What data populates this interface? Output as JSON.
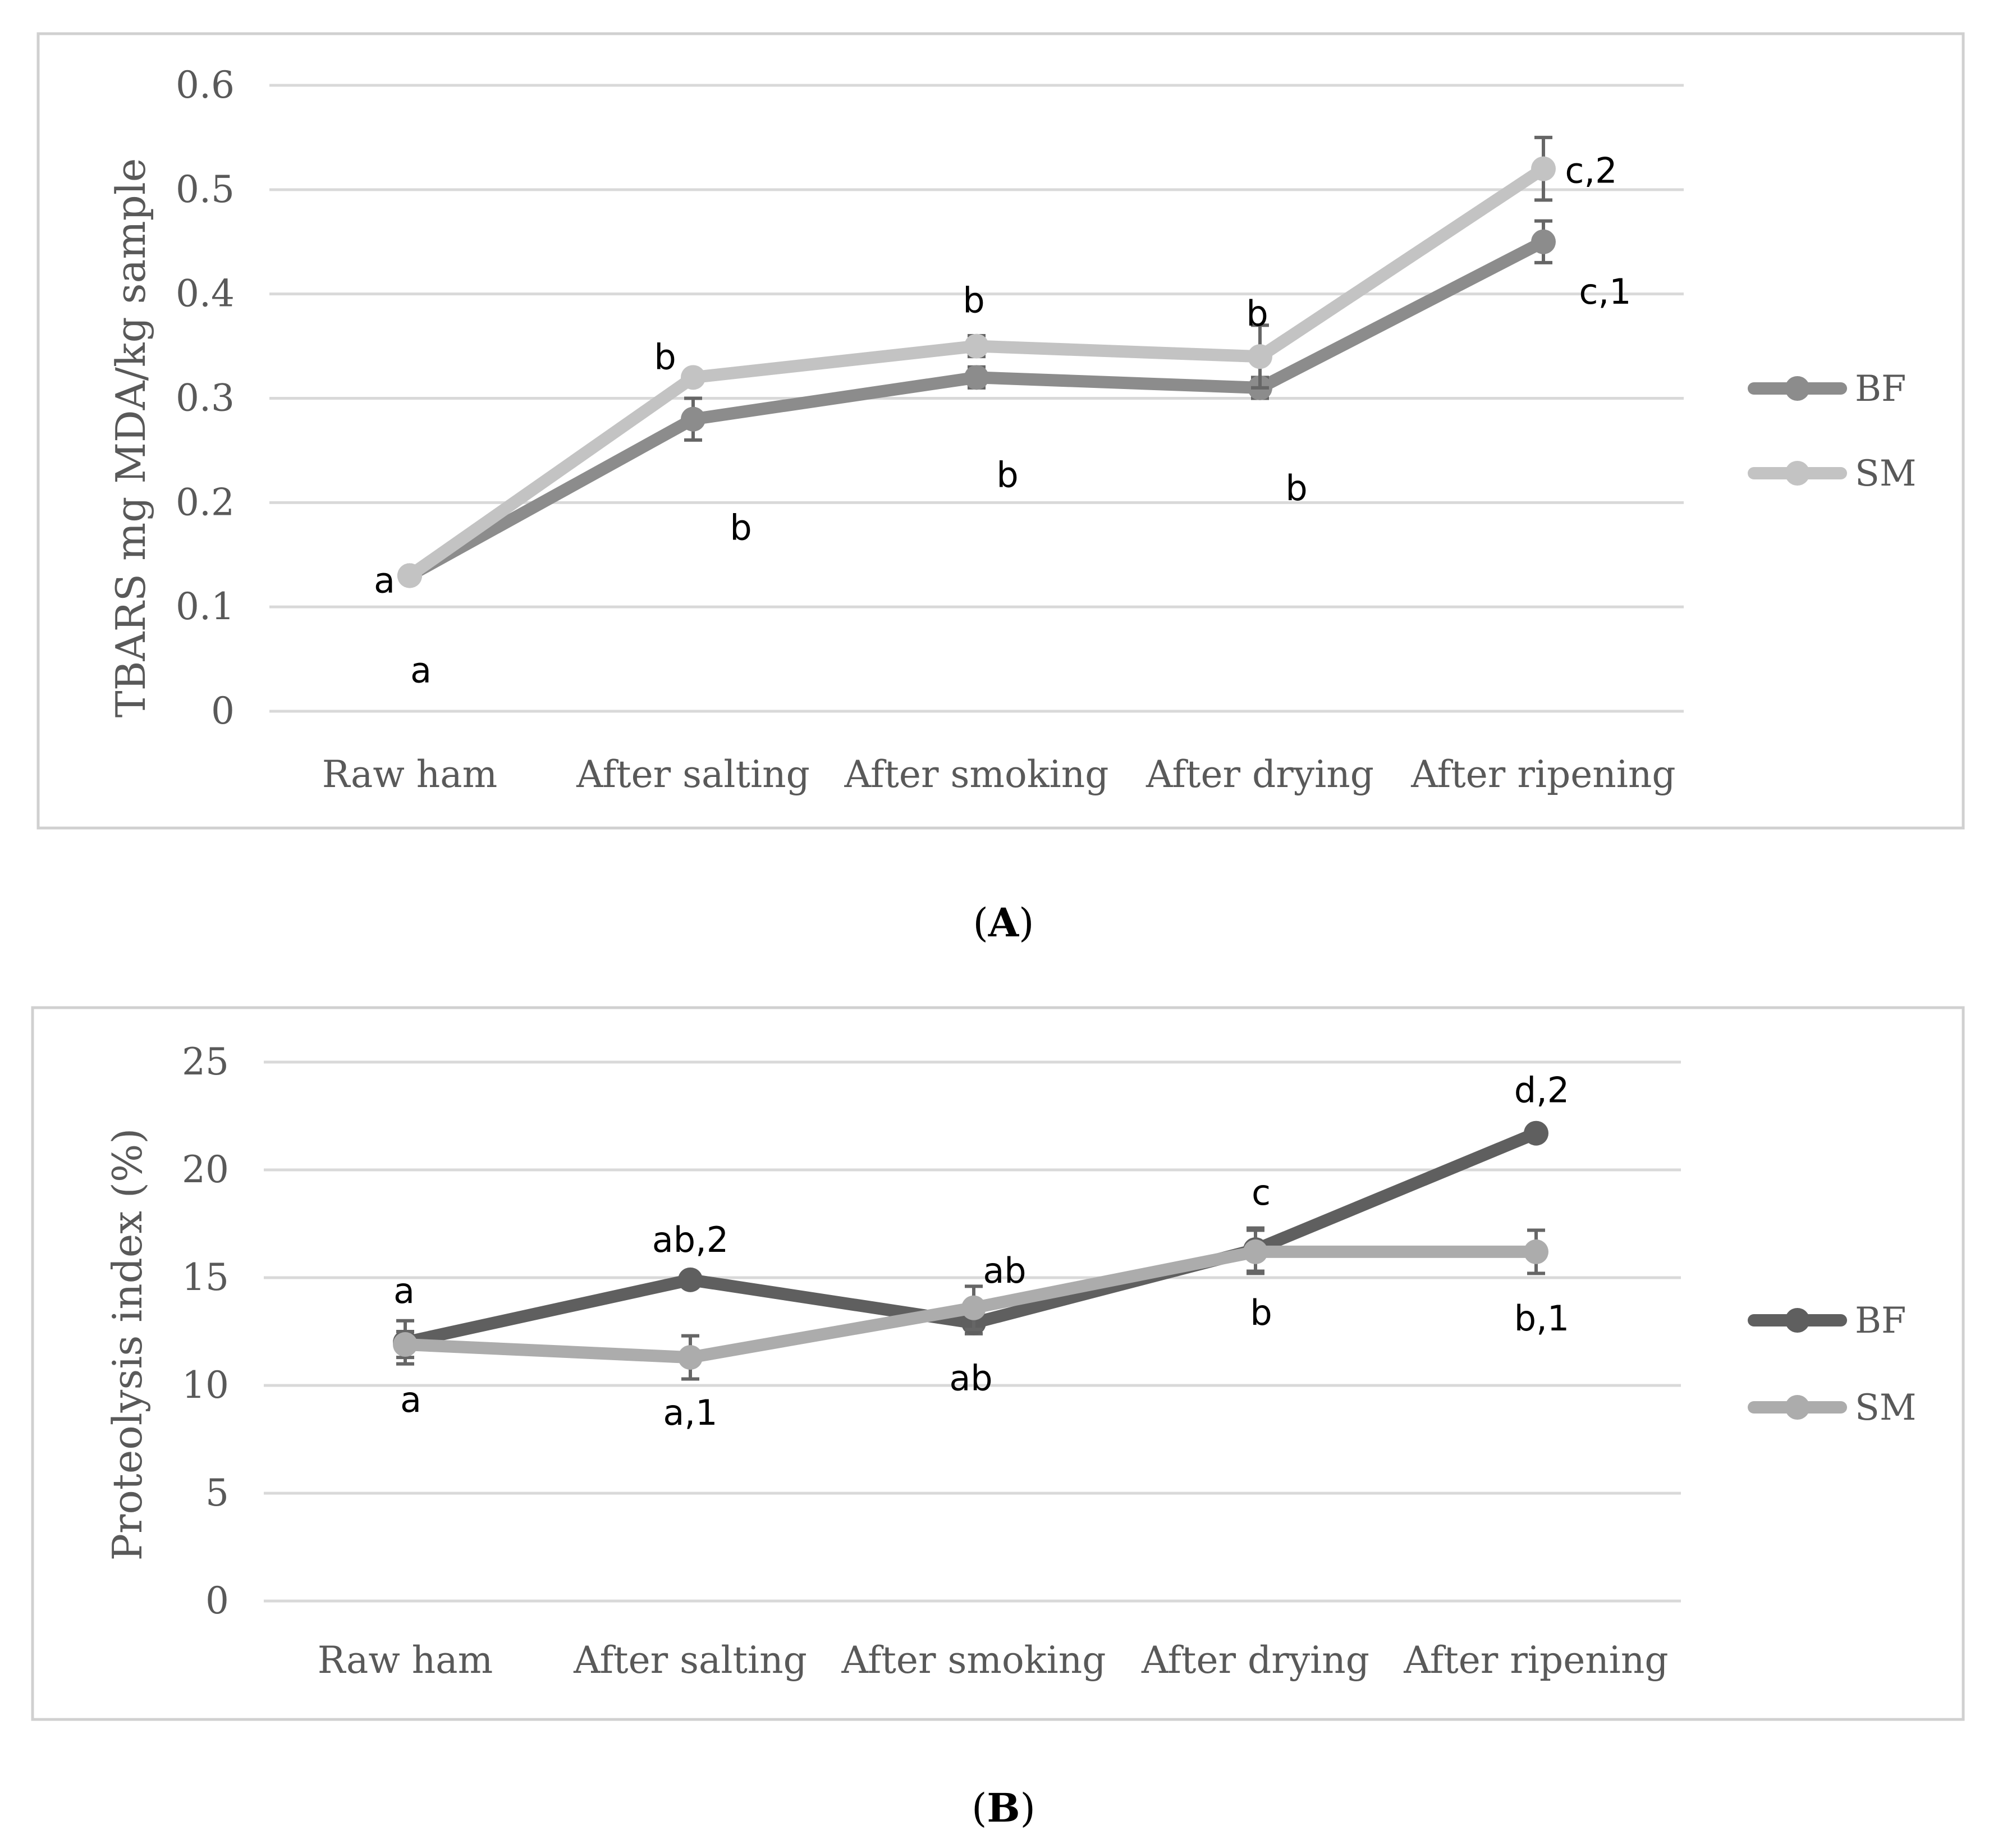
{
  "chart_data": [
    {
      "type": "line",
      "caption_letter": "A",
      "ylabel": "TBARS mg MDA/kg sample",
      "xlabel": "",
      "ylim": [
        0,
        0.6
      ],
      "yticks": [
        "0",
        "0.1",
        "0.2",
        "0.3",
        "0.4",
        "0.5",
        "0.6"
      ],
      "ytick_values": [
        0,
        0.1,
        0.2,
        0.3,
        0.4,
        0.5,
        0.6
      ],
      "grid": true,
      "legend_position": "right",
      "categories": [
        "Raw ham",
        "After salting",
        "After smoking",
        "After drying",
        "After ripening"
      ],
      "series": [
        {
          "name": "BF",
          "color": "#8c8c8c",
          "values": [
            0.13,
            0.28,
            0.32,
            0.31,
            0.45
          ],
          "errors": [
            0.005,
            0.02,
            0.01,
            0.01,
            0.02
          ],
          "letters": [
            "a",
            "b",
            "b",
            "b",
            "c,1"
          ]
        },
        {
          "name": "SM",
          "color": "#c3c3c3",
          "values": [
            0.13,
            0.32,
            0.35,
            0.34,
            0.52
          ],
          "errors": [
            0.005,
            0.005,
            0.01,
            0.03,
            0.03
          ],
          "letters": [
            "a",
            "b",
            "b",
            "b",
            "c,2"
          ]
        }
      ]
    },
    {
      "type": "line",
      "caption_letter": "B",
      "ylabel": "Proteolysis index (%)",
      "xlabel": "",
      "ylim": [
        0,
        25
      ],
      "yticks": [
        "0",
        "5",
        "10",
        "15",
        "20",
        "25"
      ],
      "ytick_values": [
        0,
        5,
        10,
        15,
        20,
        25
      ],
      "grid": true,
      "legend_position": "right",
      "categories": [
        "Raw ham",
        "After salting",
        "After smoking",
        "After drying",
        "After ripening"
      ],
      "series": [
        {
          "name": "BF",
          "color": "#5f5f5f",
          "values": [
            12.0,
            14.9,
            12.9,
            16.3,
            21.7
          ],
          "errors": [
            1.0,
            0.2,
            0.5,
            1.0,
            0.3
          ],
          "letters": [
            "a",
            "ab,2",
            "ab",
            "c",
            "d,2"
          ]
        },
        {
          "name": "SM",
          "color": "#acacac",
          "values": [
            11.9,
            11.3,
            13.6,
            16.2,
            16.2
          ],
          "errors": [
            0.6,
            1.0,
            1.0,
            1.0,
            1.0
          ],
          "letters": [
            "a",
            "a,1",
            "ab",
            "b",
            "b,1"
          ]
        }
      ]
    }
  ]
}
